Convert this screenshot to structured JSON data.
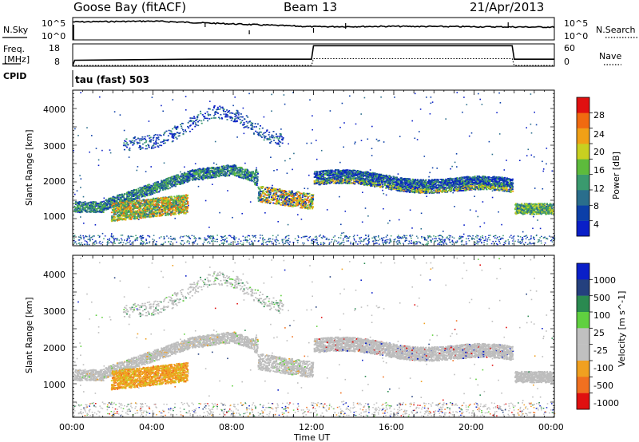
{
  "header": {
    "station": "Goose Bay (fitACF)",
    "beam": "Beam 13",
    "date": "21/Apr/2013"
  },
  "noise_panel": {
    "left_label": "N.Sky",
    "left_ticks": [
      "10^5",
      "10^0"
    ],
    "right_ticks": [
      "10^5",
      "10^0"
    ],
    "right_label": "N.Search"
  },
  "freq_panel": {
    "label_line1": "Freq.",
    "label_line2": "[MHz]",
    "left_ticks": [
      "18",
      "8"
    ],
    "right_ticks": [
      "60",
      "0"
    ],
    "right_label": "Nave"
  },
  "cpid": {
    "label": "CPID",
    "value": "tau (fast) 503"
  },
  "colors": {
    "power_scale": [
      "#0a1fc8",
      "#0c3fa8",
      "#2a6e8c",
      "#3a9a6e",
      "#5dbb3c",
      "#c8d020",
      "#f0a016",
      "#f06a10",
      "#e01010"
    ],
    "velocity_scale": [
      "#0a1fc8",
      "#24407e",
      "#2a8a50",
      "#60d040",
      "#c0c0c0",
      "#c0c0c0",
      "#f0a020",
      "#f07020",
      "#e01010"
    ],
    "gray_scatter": "#bdbdbd"
  },
  "chart_data": [
    {
      "type": "line",
      "title": "Goose Bay (fitACF)",
      "ylabel": "N.Sky",
      "x": [
        "00:00",
        "04:00",
        "08:00",
        "12:00",
        "16:00",
        "20:00",
        "00:00"
      ],
      "series": [
        {
          "name": "N.Sky",
          "values": [
            25,
            27,
            20,
            13,
            14,
            13,
            12
          ]
        },
        {
          "name": "N.Search",
          "values": [
            25,
            27,
            20,
            13,
            14,
            13,
            12
          ]
        }
      ],
      "ylim": [
        "10^0",
        "10^5"
      ]
    },
    {
      "type": "line",
      "ylabel": "Freq. [MHz]",
      "x_hours": [
        0,
        0.1,
        6.0,
        11.9,
        12.0,
        21.9,
        22.0,
        24
      ],
      "series": [
        {
          "name": "Freq.",
          "values": [
            8,
            10.5,
            11,
            11,
            17.5,
            17.5,
            11,
            11
          ]
        },
        {
          "name": "Nave",
          "values": [
            0,
            0,
            0,
            0,
            17,
            17,
            0,
            0
          ]
        }
      ],
      "ylim": [
        8,
        18
      ],
      "y2lim": [
        0,
        60
      ]
    },
    {
      "type": "heatmap",
      "xlabel": "",
      "ylabel": "Slant Range [km]",
      "x_ticks": [
        "00:00",
        "04:00",
        "08:00",
        "12:00",
        "16:00",
        "20:00",
        "00:00"
      ],
      "y_ticks": [
        1000,
        2000,
        3000,
        4000
      ],
      "colorbar": {
        "label": "Power [dB]",
        "ticks": [
          4,
          8,
          12,
          16,
          20,
          24,
          28
        ]
      }
    },
    {
      "type": "heatmap",
      "xlabel": "Time UT",
      "ylabel": "Slant Range [km]",
      "x_ticks": [
        "00:00",
        "04:00",
        "08:00",
        "12:00",
        "16:00",
        "20:00",
        "00:00"
      ],
      "y_ticks": [
        1000,
        2000,
        3000,
        4000
      ],
      "colorbar": {
        "label": "Velocity [m s^-1]",
        "ticks": [
          1000,
          500,
          100,
          25,
          -25,
          -100,
          -500,
          -1000
        ]
      }
    }
  ]
}
